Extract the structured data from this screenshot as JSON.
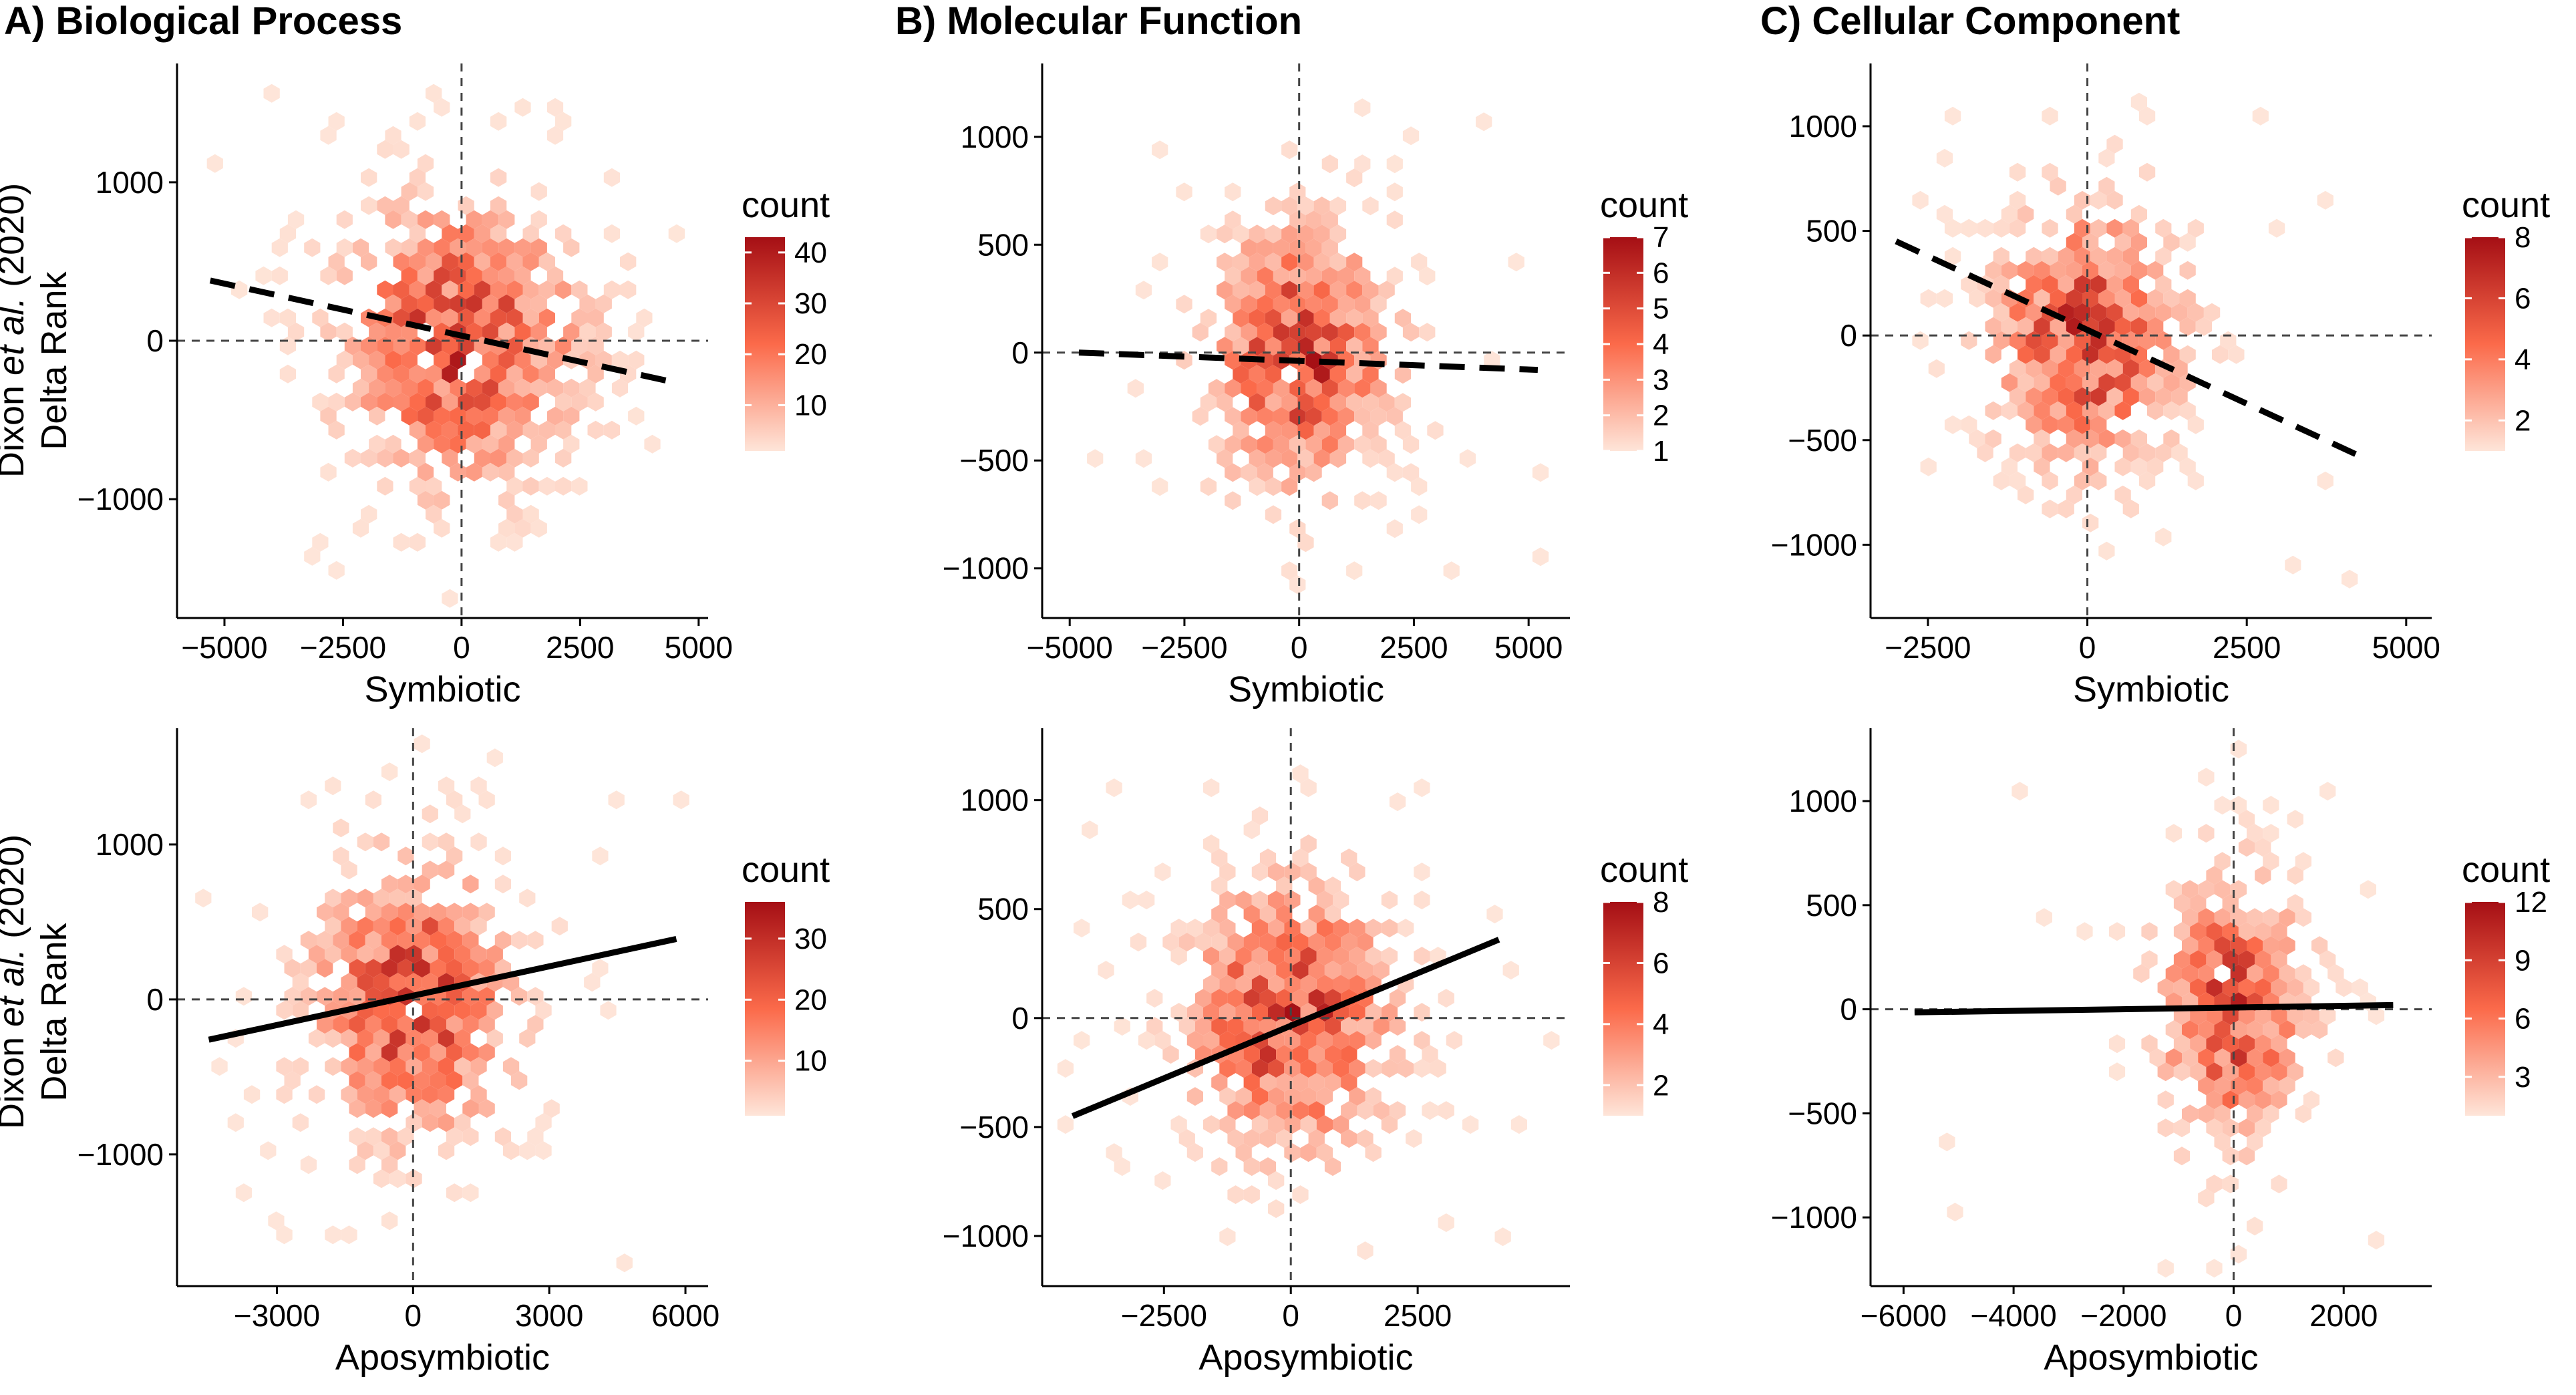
{
  "panel_titles": {
    "a": "A) Biological Process",
    "b": "B) Molecular Function",
    "c": "C) Cellular Component"
  },
  "y_axis_label": {
    "line1_pre": "Dixon ",
    "line1_italic": "et al.",
    "line1_post": " (2020)",
    "line2": "Delta Rank"
  },
  "colors": {
    "low": "#fee5d9",
    "mid": "#fb6a4a",
    "high": "#a50f15",
    "line": "#000000",
    "ref_line": "#444444"
  },
  "chart_data": [
    {
      "id": "bp-sym",
      "type": "hexbin",
      "xlabel": "Symbiotic",
      "ylabel": "Dixon et al. (2020) Delta Rank",
      "xlim": [
        -6000,
        5200
      ],
      "ylim": [
        -1750,
        1750
      ],
      "xticks": [
        -5000,
        -2500,
        0,
        2500,
        5000
      ],
      "yticks": [
        -1000,
        0,
        1000
      ],
      "xtick_labels": [
        "−5000",
        "−2500",
        "0",
        "2500",
        "5000"
      ],
      "ytick_labels": [
        "−1000",
        "0",
        "1000"
      ],
      "x_range": [
        -5200,
        4600
      ],
      "y_range": [
        -1650,
        1650
      ],
      "spread": [
        1700,
        600
      ],
      "max_count": 43,
      "legend": {
        "title": "count",
        "ticks": [
          10,
          20,
          30,
          40
        ],
        "min": 1,
        "max": 43
      },
      "fit": {
        "x": [
          -5300,
          4600
        ],
        "y": [
          380,
          -270
        ],
        "style": "dashed"
      }
    },
    {
      "id": "mf-sym",
      "type": "hexbin",
      "xlabel": "Symbiotic",
      "ylabel": "",
      "xlim": [
        -5600,
        5900
      ],
      "ylim": [
        -1230,
        1340
      ],
      "xticks": [
        -5000,
        -2500,
        0,
        2500,
        5000
      ],
      "yticks": [
        -1000,
        -500,
        0,
        500,
        1000
      ],
      "xtick_labels": [
        "−5000",
        "−2500",
        "0",
        "2500",
        "5000"
      ],
      "ytick_labels": [
        "−1000",
        "−500",
        "0",
        "500",
        "1000"
      ],
      "x_range": [
        -4800,
        5300
      ],
      "y_range": [
        -1100,
        1200
      ],
      "spread": [
        1400,
        420
      ],
      "max_count": 7,
      "legend": {
        "title": "count",
        "ticks": [
          1,
          2,
          3,
          4,
          5,
          6,
          7
        ],
        "min": 1,
        "max": 7
      },
      "fit": {
        "x": [
          -4800,
          5200
        ],
        "y": [
          0,
          -80
        ],
        "style": "dashed"
      }
    },
    {
      "id": "cc-sym",
      "type": "hexbin",
      "xlabel": "Symbiotic",
      "ylabel": "",
      "xlim": [
        -3400,
        5400
      ],
      "ylim": [
        -1350,
        1300
      ],
      "xticks": [
        -2500,
        0,
        2500,
        5000
      ],
      "yticks": [
        -1000,
        -500,
        0,
        500,
        1000
      ],
      "xtick_labels": [
        "−2500",
        "0",
        "2500",
        "5000"
      ],
      "ytick_labels": [
        "−1000",
        "−500",
        "0",
        "500",
        "1000"
      ],
      "x_range": [
        -3000,
        4800
      ],
      "y_range": [
        -1250,
        1250
      ],
      "spread": [
        1000,
        420
      ],
      "max_count": 8,
      "legend": {
        "title": "count",
        "ticks": [
          2,
          4,
          6,
          8
        ],
        "min": 1,
        "max": 8
      },
      "fit": {
        "x": [
          -3000,
          4300
        ],
        "y": [
          450,
          -580
        ],
        "style": "dashed"
      }
    },
    {
      "id": "bp-apo",
      "type": "hexbin",
      "xlabel": "Aposymbiotic",
      "ylabel": "Dixon et al. (2020) Delta Rank",
      "xlim": [
        -5200,
        6500
      ],
      "ylim": [
        -1850,
        1750
      ],
      "xticks": [
        -3000,
        0,
        3000,
        6000
      ],
      "yticks": [
        -1000,
        0,
        1000
      ],
      "xtick_labels": [
        "−3000",
        "0",
        "3000",
        "6000"
      ],
      "ytick_labels": [
        "−1000",
        "0",
        "1000"
      ],
      "x_range": [
        -4800,
        6000
      ],
      "y_range": [
        -1700,
        1650
      ],
      "spread": [
        1500,
        600
      ],
      "max_count": 36,
      "legend": {
        "title": "count",
        "ticks": [
          10,
          20,
          30
        ],
        "min": 1,
        "max": 36
      },
      "fit": {
        "x": [
          -4500,
          5800
        ],
        "y": [
          -260,
          390
        ],
        "style": "solid"
      }
    },
    {
      "id": "mf-apo",
      "type": "hexbin",
      "xlabel": "Aposymbiotic",
      "ylabel": "",
      "xlim": [
        -4900,
        5500
      ],
      "ylim": [
        -1230,
        1330
      ],
      "xticks": [
        -2500,
        0,
        2500
      ],
      "yticks": [
        -1000,
        -500,
        0,
        500,
        1000
      ],
      "xtick_labels": [
        "−2500",
        "0",
        "2500"
      ],
      "ytick_labels": [
        "−1000",
        "−500",
        "0",
        "500",
        "1000"
      ],
      "x_range": [
        -4600,
        5200
      ],
      "y_range": [
        -1100,
        1250
      ],
      "spread": [
        1400,
        420
      ],
      "max_count": 8,
      "legend": {
        "title": "count",
        "ticks": [
          2,
          4,
          6,
          8
        ],
        "min": 1,
        "max": 8
      },
      "fit": {
        "x": [
          -4300,
          4100
        ],
        "y": [
          -450,
          360
        ],
        "style": "solid"
      }
    },
    {
      "id": "cc-apo",
      "type": "hexbin",
      "xlabel": "Aposymbiotic",
      "ylabel": "",
      "xlim": [
        -6600,
        3600
      ],
      "ylim": [
        -1330,
        1350
      ],
      "xticks": [
        -6000,
        -4000,
        -2000,
        0,
        2000
      ],
      "yticks": [
        -1000,
        -500,
        0,
        500,
        1000
      ],
      "xtick_labels": [
        "−6000",
        "−4000",
        "−2000",
        "0",
        "2000"
      ],
      "ytick_labels": [
        "−1000",
        "−500",
        "0",
        "500",
        "1000"
      ],
      "x_range": [
        -5800,
        3000
      ],
      "y_range": [
        -1250,
        1250
      ],
      "spread": [
        900,
        420
      ],
      "max_count": 12,
      "legend": {
        "title": "count",
        "ticks": [
          3,
          6,
          9,
          12
        ],
        "min": 1,
        "max": 12
      },
      "fit": {
        "x": [
          -5800,
          2900
        ],
        "y": [
          -15,
          20
        ],
        "style": "solid"
      }
    }
  ]
}
